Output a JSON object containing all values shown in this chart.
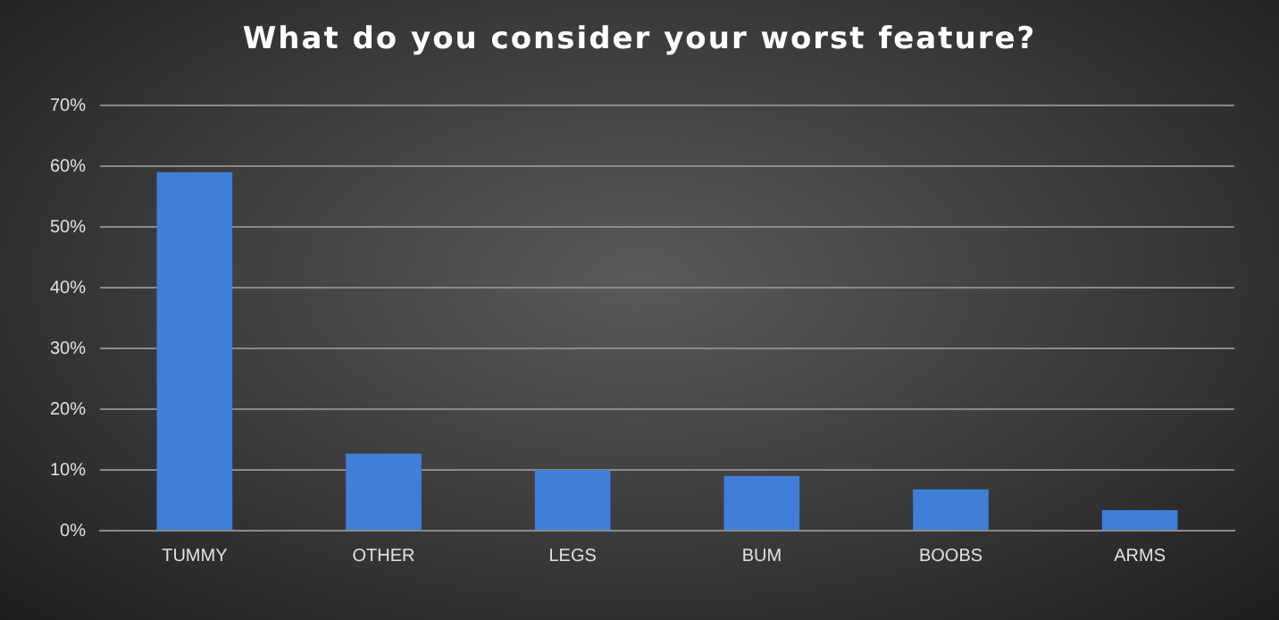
{
  "chart_data": {
    "type": "bar",
    "title": "What do you consider your worst feature?",
    "categories": [
      "TUMMY",
      "OTHER",
      "LEGS",
      "BUM",
      "BOOBS",
      "ARMS"
    ],
    "values": [
      59,
      12.7,
      10,
      9,
      6.8,
      3.4
    ],
    "color": "#3f7fd8",
    "ylim": [
      0,
      70
    ],
    "yticks": [
      {
        "value": 0,
        "label": "0%"
      },
      {
        "value": 10,
        "label": "10%"
      },
      {
        "value": 20,
        "label": "20%"
      },
      {
        "value": 30,
        "label": "30%"
      },
      {
        "value": 40,
        "label": "40%"
      },
      {
        "value": 50,
        "label": "50%"
      },
      {
        "value": 60,
        "label": "60%"
      },
      {
        "value": 70,
        "label": "70%"
      }
    ],
    "grid": "y",
    "legend": false
  }
}
